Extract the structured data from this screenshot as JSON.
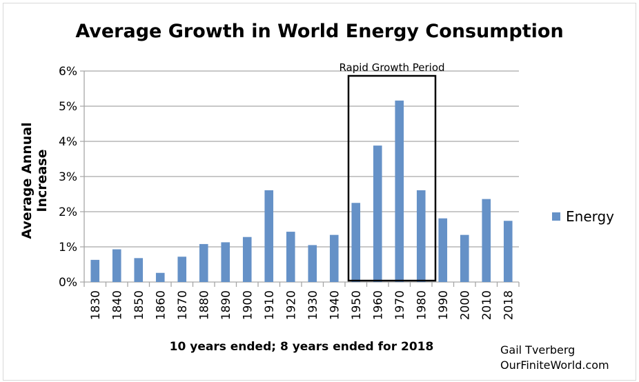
{
  "chart_data": {
    "type": "bar",
    "title": "Average Growth in World Energy Consumption",
    "xlabel": "10 years ended; 8 years ended for 2018",
    "ylabel": "Average Annual Increase",
    "categories": [
      "1830",
      "1840",
      "1850",
      "1860",
      "1870",
      "1880",
      "1890",
      "1900",
      "1910",
      "1920",
      "1930",
      "1940",
      "1950",
      "1960",
      "1970",
      "1980",
      "1990",
      "2000",
      "2010",
      "2018"
    ],
    "series": [
      {
        "name": "Energy",
        "color": "#6591c7",
        "values": [
          0.63,
          0.93,
          0.68,
          0.26,
          0.72,
          1.08,
          1.13,
          1.28,
          2.61,
          1.43,
          1.05,
          1.34,
          2.25,
          3.88,
          5.16,
          2.61,
          1.81,
          1.34,
          2.36,
          1.74
        ]
      }
    ],
    "ylim": [
      0,
      6
    ],
    "yticks": [
      "0%",
      "1%",
      "2%",
      "3%",
      "4%",
      "5%",
      "6%"
    ],
    "grid": true,
    "legend_placement": "right",
    "annotation": {
      "label": "Rapid Growth Period",
      "from": "1950",
      "to": "1980"
    }
  },
  "credit": {
    "line1": "Gail Tverberg",
    "line2": "OurFiniteWorld.com"
  }
}
